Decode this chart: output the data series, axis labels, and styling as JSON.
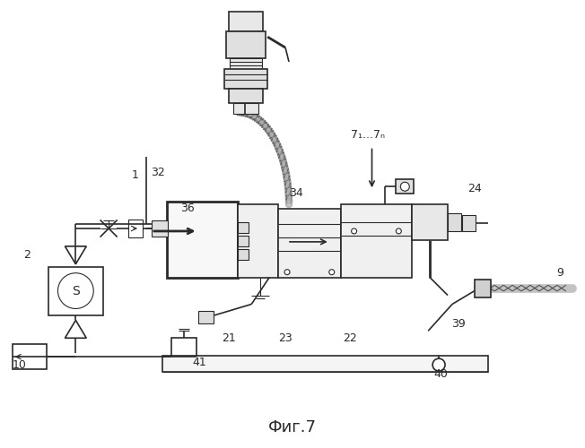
{
  "title": "Фиг.7",
  "bg_color": "#ffffff",
  "line_color": "#2a2a2a",
  "gray_light": "#cccccc",
  "gray_mid": "#aaaaaa"
}
